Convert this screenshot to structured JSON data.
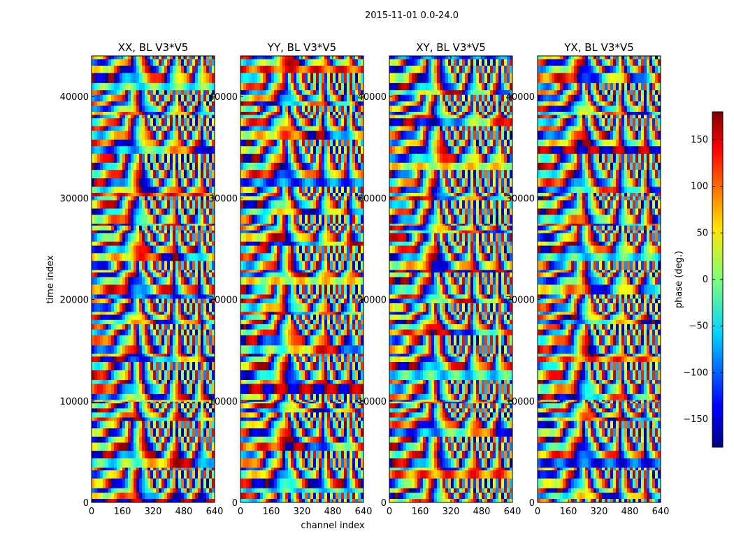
{
  "chart_data": {
    "type": "heatmap",
    "suptitle": "2015-11-01 0.0-24.0",
    "xlabel": "channel index",
    "ylabel": "time index",
    "colorbar_label": "phase (deg.)",
    "colormap": "jet",
    "xlim": [
      0,
      640
    ],
    "ylim": [
      0,
      44000
    ],
    "clim": [
      -180,
      180
    ],
    "x_ticks": [
      "0",
      "160",
      "320",
      "480",
      "640"
    ],
    "y_ticks": [
      "0",
      "10000",
      "20000",
      "30000",
      "40000"
    ],
    "colorbar_ticks": [
      "150",
      "100",
      "50",
      "0",
      "−50",
      "−100",
      "−150"
    ],
    "colorbar_tick_values": [
      150,
      100,
      50,
      0,
      -50,
      -100,
      -150
    ],
    "panels": [
      {
        "title": "XX, BL V3*V5"
      },
      {
        "title": "YY, BL V3*V5"
      },
      {
        "title": "XY, BL V3*V5"
      },
      {
        "title": "YX, BL V3*V5"
      }
    ]
  }
}
